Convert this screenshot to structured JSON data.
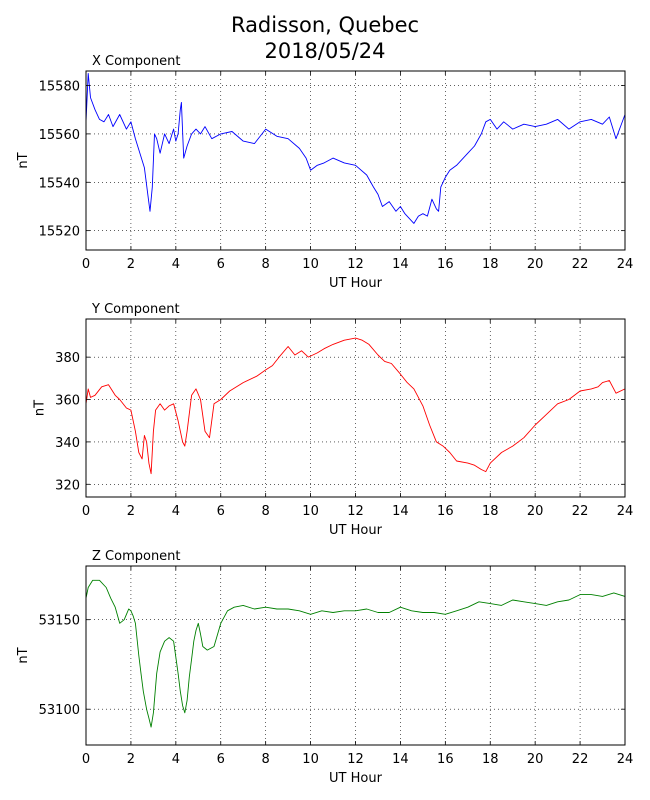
{
  "page": {
    "title_line1": "Radisson, Quebec",
    "title_line2": "2018/05/24"
  },
  "chart_data": [
    {
      "type": "line",
      "title": "X Component",
      "xlabel": "UT Hour",
      "ylabel": "nT",
      "xlim": [
        0,
        24
      ],
      "ylim": [
        15512,
        15586
      ],
      "xticks": [
        0,
        2,
        4,
        6,
        8,
        10,
        12,
        14,
        16,
        18,
        20,
        22,
        24
      ],
      "yticks": [
        15520,
        15540,
        15560,
        15580
      ],
      "grid": true,
      "color": "#0000ff",
      "series": [
        {
          "x": [
            0,
            0.1,
            0.2,
            0.4,
            0.6,
            0.8,
            1.0,
            1.2,
            1.5,
            1.8,
            2.0,
            2.2,
            2.4,
            2.6,
            2.75,
            2.85,
            2.95,
            3.05,
            3.15,
            3.3,
            3.5,
            3.7,
            3.9,
            4.0,
            4.1,
            4.2,
            4.25,
            4.35,
            4.5,
            4.7,
            4.9,
            5.1,
            5.3,
            5.6,
            6.0,
            6.5,
            7.0,
            7.5,
            8.0,
            8.5,
            9.0,
            9.5,
            9.8,
            10.0,
            10.3,
            10.6,
            11.0,
            11.5,
            12.0,
            12.5,
            12.8,
            13.0,
            13.2,
            13.5,
            13.8,
            14.0,
            14.2,
            14.4,
            14.6,
            14.8,
            15.0,
            15.2,
            15.4,
            15.6,
            15.7,
            15.8,
            16.0,
            16.2,
            16.5,
            17.0,
            17.3,
            17.6,
            17.8,
            18.0,
            18.3,
            18.6,
            19.0,
            19.5,
            20.0,
            20.5,
            21.0,
            21.5,
            22.0,
            22.5,
            23.0,
            23.3,
            23.6,
            23.8,
            24.0
          ],
          "y": [
            15565,
            15585,
            15575,
            15570,
            15566,
            15565,
            15568,
            15563,
            15568,
            15562,
            15565,
            15558,
            15552,
            15546,
            15535,
            15528,
            15538,
            15560,
            15558,
            15552,
            15560,
            15556,
            15562,
            15557,
            15560,
            15570,
            15573,
            15550,
            15555,
            15560,
            15562,
            15560,
            15563,
            15558,
            15560,
            15561,
            15557,
            15556,
            15562,
            15559,
            15558,
            15554,
            15550,
            15545,
            15547,
            15548,
            15550,
            15548,
            15547,
            15543,
            15538,
            15535,
            15530,
            15532,
            15528,
            15530,
            15527,
            15525,
            15523,
            15526,
            15527,
            15526,
            15533,
            15529,
            15528,
            15538,
            15542,
            15545,
            15547,
            15552,
            15555,
            15560,
            15565,
            15566,
            15562,
            15565,
            15562,
            15564,
            15563,
            15564,
            15566,
            15562,
            15565,
            15566,
            15564,
            15567,
            15558,
            15563,
            15568
          ]
        }
      ]
    },
    {
      "type": "line",
      "title": "Y Component",
      "xlabel": "UT Hour",
      "ylabel": "nT",
      "xlim": [
        0,
        24
      ],
      "ylim": [
        314,
        398
      ],
      "xticks": [
        0,
        2,
        4,
        6,
        8,
        10,
        12,
        14,
        16,
        18,
        20,
        22,
        24
      ],
      "yticks": [
        320,
        340,
        360,
        380
      ],
      "grid": true,
      "color": "#ff0000",
      "series": [
        {
          "x": [
            0,
            0.1,
            0.2,
            0.4,
            0.7,
            1.0,
            1.3,
            1.5,
            1.8,
            2.0,
            2.2,
            2.35,
            2.5,
            2.6,
            2.7,
            2.8,
            2.9,
            3.0,
            3.1,
            3.3,
            3.5,
            3.7,
            3.9,
            4.1,
            4.3,
            4.4,
            4.5,
            4.7,
            4.9,
            5.1,
            5.3,
            5.5,
            5.7,
            6.0,
            6.4,
            7.0,
            7.6,
            8.0,
            8.3,
            8.6,
            9.0,
            9.3,
            9.6,
            9.9,
            10.3,
            10.6,
            11.0,
            11.5,
            12.0,
            12.3,
            12.6,
            13.0,
            13.3,
            13.6,
            14.0,
            14.3,
            14.6,
            15.0,
            15.3,
            15.6,
            15.9,
            16.2,
            16.5,
            17.0,
            17.3,
            17.6,
            17.8,
            18.0,
            18.5,
            19.0,
            19.5,
            20.0,
            20.5,
            21.0,
            21.5,
            22.0,
            22.5,
            22.8,
            23.0,
            23.3,
            23.6,
            24.0
          ],
          "y": [
            358,
            365,
            361,
            362,
            366,
            367,
            362,
            360,
            356,
            355,
            345,
            335,
            332,
            343,
            340,
            330,
            325,
            345,
            355,
            358,
            355,
            357,
            358,
            350,
            340,
            338,
            345,
            362,
            365,
            360,
            345,
            342,
            358,
            360,
            364,
            368,
            371,
            374,
            376,
            380,
            385,
            381,
            383,
            380,
            382,
            384,
            386,
            388,
            389,
            388,
            386,
            381,
            378,
            377,
            372,
            368,
            365,
            357,
            348,
            340,
            338,
            335,
            331,
            330,
            329,
            327,
            326,
            330,
            335,
            338,
            342,
            348,
            353,
            358,
            360,
            364,
            365,
            366,
            368,
            369,
            363,
            365
          ]
        }
      ]
    },
    {
      "type": "line",
      "title": "Z Component",
      "xlabel": "UT Hour",
      "ylabel": "nT",
      "xlim": [
        0,
        24
      ],
      "ylim": [
        53080,
        53180
      ],
      "xticks": [
        0,
        2,
        4,
        6,
        8,
        10,
        12,
        14,
        16,
        18,
        20,
        22,
        24
      ],
      "yticks": [
        53100,
        53150
      ],
      "grid": true,
      "color": "#008000",
      "series": [
        {
          "x": [
            0,
            0.1,
            0.3,
            0.6,
            0.9,
            1.1,
            1.3,
            1.5,
            1.7,
            1.9,
            2.0,
            2.1,
            2.2,
            2.35,
            2.45,
            2.55,
            2.7,
            2.8,
            2.9,
            3.0,
            3.15,
            3.3,
            3.5,
            3.7,
            3.9,
            4.1,
            4.2,
            4.3,
            4.4,
            4.5,
            4.6,
            4.7,
            4.8,
            4.9,
            5.0,
            5.1,
            5.2,
            5.4,
            5.7,
            6.0,
            6.3,
            6.6,
            7.0,
            7.5,
            8.0,
            8.5,
            9.0,
            9.5,
            10.0,
            10.5,
            11.0,
            11.5,
            12.0,
            12.5,
            13.0,
            13.5,
            14.0,
            14.5,
            15.0,
            15.5,
            16.0,
            16.5,
            17.0,
            17.5,
            18.0,
            18.5,
            19.0,
            19.5,
            20.0,
            20.5,
            21.0,
            21.5,
            22.0,
            22.5,
            23.0,
            23.5,
            24.0
          ],
          "y": [
            53162,
            53168,
            53172,
            53172,
            53168,
            53162,
            53157,
            53148,
            53150,
            53156,
            53155,
            53152,
            53148,
            53130,
            53120,
            53110,
            53100,
            53095,
            53090,
            53098,
            53120,
            53132,
            53138,
            53140,
            53138,
            53120,
            53110,
            53102,
            53098,
            53105,
            53118,
            53128,
            53138,
            53144,
            53148,
            53142,
            53135,
            53133,
            53135,
            53148,
            53155,
            53157,
            53158,
            53156,
            53157,
            53156,
            53156,
            53155,
            53153,
            53155,
            53154,
            53155,
            53155,
            53156,
            53154,
            53154,
            53157,
            53155,
            53154,
            53154,
            53153,
            53155,
            53157,
            53160,
            53159,
            53158,
            53161,
            53160,
            53159,
            53158,
            53160,
            53161,
            53164,
            53164,
            53163,
            53165,
            53163
          ]
        }
      ]
    }
  ]
}
